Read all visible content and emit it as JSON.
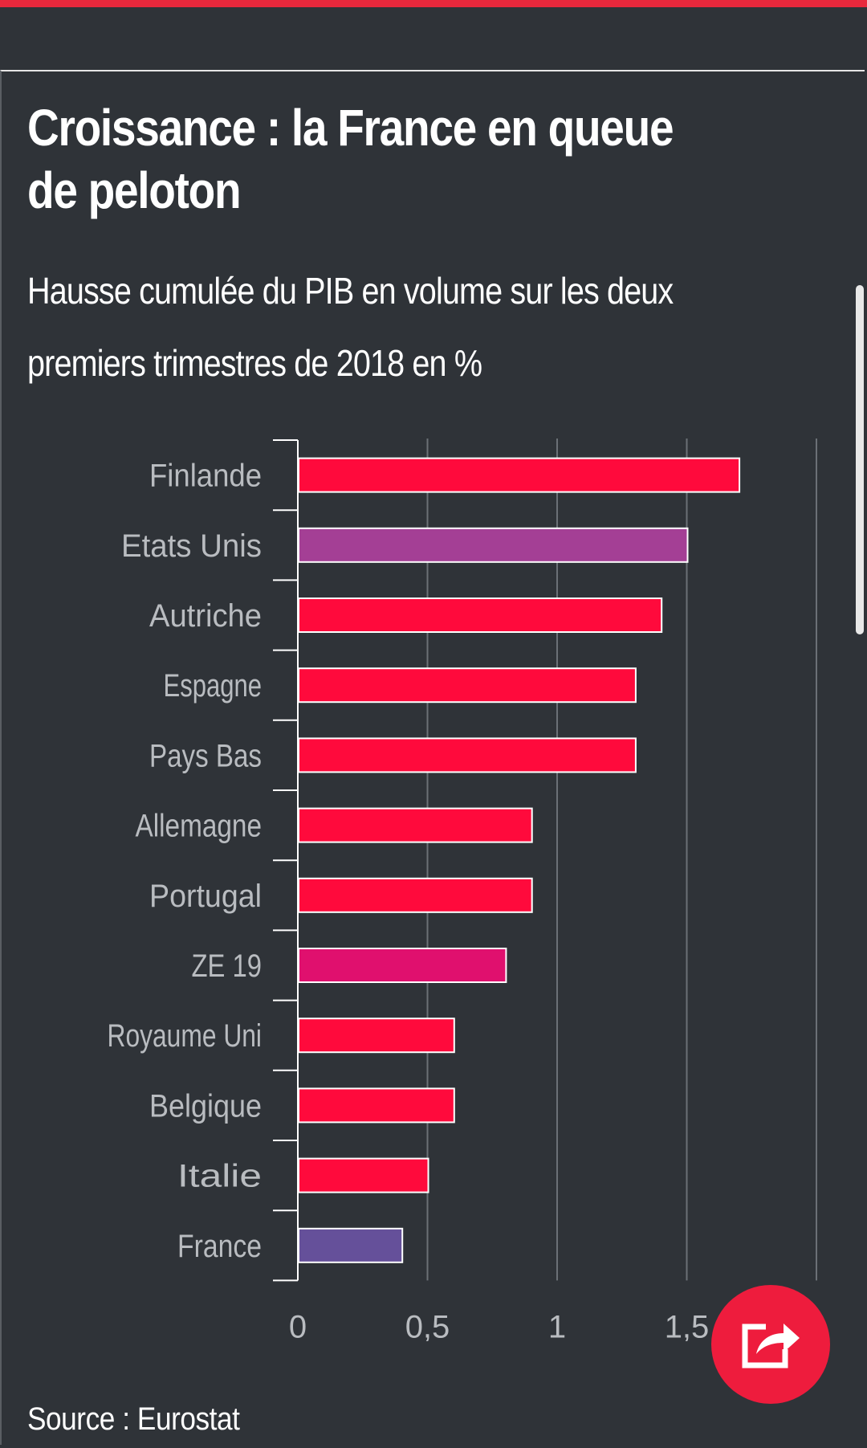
{
  "chart_data": {
    "type": "bar",
    "orientation": "horizontal",
    "title": "Croissance : la France en queue de peloton",
    "subtitle": "Hausse cumulée du PIB en volume sur les deux premiers trimestres de 2018 en %",
    "categories": [
      "Finlande",
      "Etats Unis",
      "Autriche",
      "Espagne",
      "Pays Bas",
      "Allemagne",
      "Portugal",
      "ZE 19",
      "Royaume Uni",
      "Belgique",
      "Italie",
      "France"
    ],
    "values": [
      1.7,
      1.5,
      1.4,
      1.3,
      1.3,
      0.9,
      0.9,
      0.8,
      0.6,
      0.6,
      0.5,
      0.4
    ],
    "bar_colors": [
      "#ff0a3c",
      "#a43f95",
      "#ff0a3c",
      "#ff0a3c",
      "#ff0a3c",
      "#ff0a3c",
      "#ff0a3c",
      "#e0106e",
      "#ff0a3c",
      "#ff0a3c",
      "#ff0a3c",
      "#65509a"
    ],
    "x_ticks": [
      "0",
      "0,5",
      "1",
      "1,5"
    ],
    "x_tick_values": [
      0,
      0.5,
      1,
      1.5
    ],
    "xlim": [
      0,
      2
    ],
    "grid": true,
    "legend": "none",
    "source": "Source : Eurostat"
  },
  "colors": {
    "background": "#2f3338",
    "accent": "#e8283c",
    "share_button": "#ee1c3d",
    "label_text": "#b9bcc0",
    "grid": "#6b7076"
  },
  "share_button": {
    "icon": "share-icon"
  }
}
